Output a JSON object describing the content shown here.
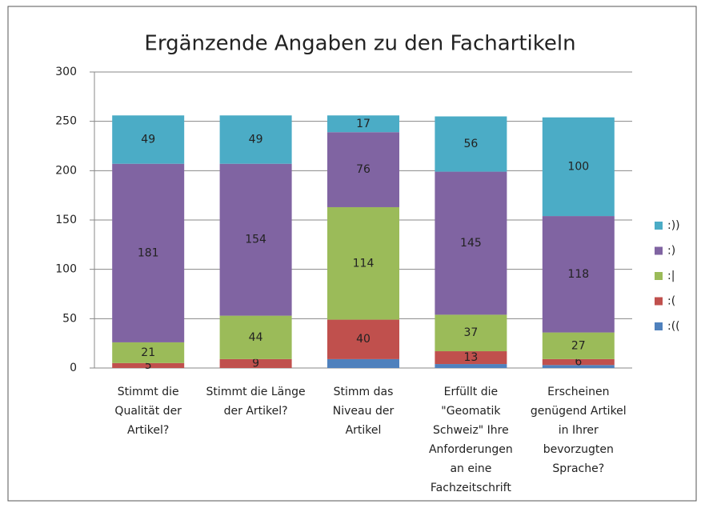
{
  "chart_data": {
    "type": "stacked_bar",
    "title": "Ergänzende Angaben zu den Fachartikeln",
    "categories": [
      "Stimmt die\nQualität der\nArtikel?",
      "Stimmt die Länge\nder Artikel?",
      "Stimm das\nNiveau der\nArtikel",
      "Erfüllt die\n\"Geomatik\nSchweiz\" Ihre\nAnforderungen\nan eine\nFachzeitschrift",
      "Erscheinen\ngenügend Artikel\nin Ihrer\nbevorzugten\nSprache?"
    ],
    "series": [
      {
        "name": ":((",
        "color": "#4f81bd",
        "values": [
          0,
          0,
          9,
          4,
          3
        ],
        "data_labels": false
      },
      {
        "name": ":(",
        "color": "#c0504d",
        "values": [
          5,
          9,
          40,
          13,
          6
        ],
        "data_labels": true
      },
      {
        "name": ":|",
        "color": "#9bbb59",
        "values": [
          21,
          44,
          114,
          37,
          27
        ],
        "data_labels": true
      },
      {
        "name": ":)",
        "color": "#8064a2",
        "values": [
          181,
          154,
          76,
          145,
          118
        ],
        "data_labels": true
      },
      {
        "name": ":))",
        "color": "#4bacc6",
        "values": [
          49,
          49,
          17,
          56,
          100
        ],
        "data_labels": true
      }
    ],
    "ylim": [
      0,
      300
    ],
    "yticks": [
      0,
      50,
      100,
      150,
      200,
      250,
      300
    ],
    "grid": true,
    "legend": "right"
  }
}
